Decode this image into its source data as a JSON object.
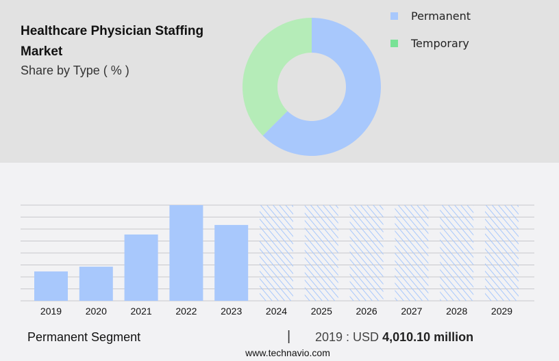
{
  "header": {
    "title": "Healthcare Physician Staffing Market",
    "subtitle": "Share by Type ( % )"
  },
  "chart_data": [
    {
      "type": "pie",
      "variant": "donut",
      "legend_position": "right",
      "categories": [
        "Permanent",
        "Temporary"
      ],
      "values": [
        62.5,
        37.5
      ],
      "colors": [
        "#a8c8fc",
        "#b5ecb8"
      ],
      "legend_colors": [
        "#a8c8fc",
        "#79e296"
      ]
    },
    {
      "type": "bar",
      "categories": [
        "2019",
        "2020",
        "2021",
        "2022",
        "2023",
        "2024",
        "2025",
        "2026",
        "2027",
        "2028",
        "2029"
      ],
      "series": [
        {
          "name": "Permanent Segment",
          "values": [
            4010.1,
            4660,
            9050,
            13060,
            10350,
            null,
            null,
            null,
            null,
            null,
            null
          ]
        }
      ],
      "forecast_years": [
        "2024",
        "2025",
        "2026",
        "2027",
        "2028",
        "2029"
      ],
      "ylim": [
        0,
        13060
      ],
      "grid": true,
      "color": "#a8c8fc",
      "hatched_forecast": true
    }
  ],
  "footer": {
    "segment": "Permanent Segment",
    "separator": "|",
    "value_prefix": "2019 : USD ",
    "value": "4,010.10 million",
    "site": "www.technavio.com"
  }
}
